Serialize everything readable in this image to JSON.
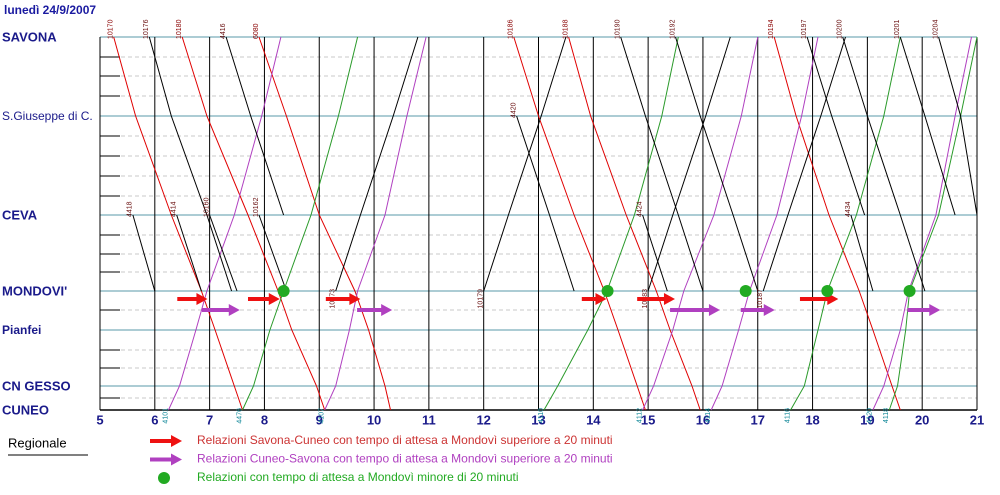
{
  "chart_data": {
    "type": "timetable",
    "title": "lunedì 24/9/2007",
    "stations": [
      "SAVONA",
      "S.Giuseppe di C.",
      "CEVA",
      "MONDOVI'",
      "Pianfei",
      "CN GESSO",
      "CUNEO"
    ],
    "xlim": [
      5,
      21
    ],
    "xticks": [
      5,
      6,
      7,
      8,
      9,
      10,
      11,
      12,
      13,
      14,
      15,
      16,
      17,
      18,
      19,
      20,
      21
    ],
    "grid": true,
    "legend_title": "Regionale",
    "trains": [
      {
        "name": "10170",
        "color": "#e00000",
        "stops": [
          "SAVONA",
          "S.Giuseppe di C.",
          "CEVA",
          "MONDOVI'",
          "Pianfei",
          "CN GESSO",
          "CUNEO"
        ],
        "times": [
          5.25,
          5.65,
          6.3,
          6.85,
          7.1,
          7.45,
          7.6
        ]
      },
      {
        "name": "10180",
        "color": "#e00000",
        "stops": [
          "SAVONA",
          "S.Giuseppe di C.",
          "CEVA",
          "MONDOVI'",
          "Pianfei",
          "CN GESSO",
          "CUNEO"
        ],
        "times": [
          6.5,
          6.95,
          7.7,
          8.25,
          8.5,
          8.95,
          9.1
        ]
      },
      {
        "name": "6080",
        "color": "#e00000",
        "stops": [
          "SAVONA",
          "S.Giuseppe di C.",
          "CEVA",
          "MONDOVI'",
          "Pianfei",
          "CN GESSO",
          "CUNEO"
        ],
        "times": [
          7.9,
          8.4,
          9.0,
          9.65,
          9.9,
          10.2,
          10.3
        ]
      },
      {
        "name": "10186",
        "color": "#e00000",
        "stops": [
          "SAVONA",
          "S.Giuseppe di C.",
          "CEVA",
          "MONDOVI'",
          "Pianfei",
          "CN GESSO",
          "CUNEO"
        ],
        "times": [
          12.55,
          13.0,
          13.65,
          14.2,
          14.45,
          14.8,
          14.95
        ]
      },
      {
        "name": "10188",
        "color": "#e00000",
        "stops": [
          "SAVONA",
          "S.Giuseppe di C.",
          "CEVA",
          "MONDOVI'",
          "Pianfei",
          "CN GESSO",
          "CUNEO"
        ],
        "times": [
          13.55,
          13.95,
          14.6,
          15.15,
          15.4,
          15.8,
          15.95
        ]
      },
      {
        "name": "10194",
        "color": "#e00000",
        "stops": [
          "SAVONA",
          "S.Giuseppe di C.",
          "CEVA",
          "MONDOVI'",
          "Pianfei",
          "CN GESSO",
          "CUNEO"
        ],
        "times": [
          17.3,
          17.7,
          18.3,
          18.85,
          19.1,
          19.45,
          19.6
        ]
      },
      {
        "name": "4101",
        "color": "#b040c0",
        "stops": [
          "CUNEO",
          "CN GESSO",
          "Pianfei",
          "MONDOVI'",
          "CEVA",
          "S.Giuseppe di C.",
          "SAVONA"
        ],
        "times": [
          6.25,
          6.45,
          6.75,
          6.95,
          7.45,
          7.95,
          8.3
        ]
      },
      {
        "name": "4107",
        "color": "#b040c0",
        "stops": [
          "CUNEO",
          "CN GESSO",
          "Pianfei",
          "MONDOVI'",
          "CEVA",
          "S.Giuseppe di C.",
          "SAVONA"
        ],
        "times": [
          9.1,
          9.3,
          9.55,
          9.7,
          10.2,
          10.6,
          10.95
        ]
      },
      {
        "name": "4112",
        "color": "#b040c0",
        "stops": [
          "CUNEO",
          "CN GESSO",
          "Pianfei",
          "MONDOVI'",
          "CEVA",
          "S.Giuseppe di C.",
          "SAVONA"
        ],
        "times": [
          14.9,
          15.1,
          15.45,
          15.65,
          16.2,
          16.7,
          17.0
        ]
      },
      {
        "name": "4114",
        "color": "#b040c0",
        "stops": [
          "CUNEO",
          "CN GESSO",
          "Pianfei",
          "MONDOVI'",
          "CEVA",
          "S.Giuseppe di C.",
          "SAVONA"
        ],
        "times": [
          16.15,
          16.35,
          16.65,
          16.85,
          17.35,
          17.8,
          18.1
        ]
      },
      {
        "name": "4120",
        "color": "#b040c0",
        "stops": [
          "CUNEO",
          "CN GESSO",
          "Pianfei",
          "MONDOVI'",
          "CEVA",
          "S.Giuseppe di C.",
          "SAVONA"
        ],
        "times": [
          19.1,
          19.3,
          19.6,
          19.75,
          20.25,
          20.6,
          20.9
        ]
      },
      {
        "name": "4476",
        "color": "#2a9a2a",
        "stops": [
          "CUNEO",
          "CN GESSO",
          "Pianfei",
          "MONDOVI'",
          "CEVA",
          "S.Giuseppe di C.",
          "SAVONA"
        ],
        "times": [
          7.6,
          7.8,
          8.1,
          8.35,
          8.85,
          9.35,
          9.7
        ]
      },
      {
        "name": "4110",
        "color": "#2a9a2a",
        "stops": [
          "CUNEO",
          "CN GESSO",
          "Pianfei",
          "MONDOVI'",
          "CEVA",
          "S.Giuseppe di C.",
          "SAVONA"
        ],
        "times": [
          13.1,
          13.35,
          13.9,
          14.25,
          14.75,
          15.25,
          15.55
        ]
      },
      {
        "name": "4116",
        "color": "#2a9a2a",
        "stops": [
          "CUNEO",
          "CN GESSO",
          "Pianfei",
          "MONDOVI'",
          "CEVA",
          "S.Giuseppe di C.",
          "SAVONA"
        ],
        "times": [
          17.6,
          17.85,
          18.1,
          18.27,
          18.8,
          19.3,
          19.6
        ]
      },
      {
        "name": "4118",
        "color": "#2a9a2a",
        "stops": [
          "CUNEO",
          "CN GESSO",
          "Pianfei",
          "MONDOVI'",
          "CEVA",
          "S.Giuseppe di C.",
          "SAVONA"
        ],
        "times": [
          19.4,
          19.55,
          19.7,
          19.77,
          20.3,
          20.7,
          21.0
        ]
      },
      {
        "name": "10176",
        "color": "#000000",
        "stops": [
          "SAVONA",
          "S.Giuseppe di C.",
          "CEVA",
          "MONDOVI'"
        ],
        "times": [
          5.9,
          6.3,
          6.95,
          7.4
        ]
      },
      {
        "name": "4416",
        "color": "#000000",
        "stops": [
          "SAVONA",
          "S.Giuseppe di C.",
          "CEVA"
        ],
        "times": [
          7.3,
          7.75,
          8.35
        ]
      },
      {
        "name": "10190",
        "color": "#000000",
        "stops": [
          "SAVONA",
          "S.Giuseppe di C.",
          "CEVA",
          "MONDOVI'"
        ],
        "times": [
          14.5,
          14.95,
          15.55,
          16.0
        ]
      },
      {
        "name": "10192",
        "color": "#000000",
        "stops": [
          "SAVONA",
          "S.Giuseppe di C.",
          "CEVA",
          "MONDOVI'"
        ],
        "times": [
          15.5,
          15.95,
          16.55,
          17.0
        ]
      },
      {
        "name": "10197",
        "color": "#000000",
        "stops": [
          "SAVONA",
          "S.Giuseppe di C.",
          "CEVA"
        ],
        "times": [
          17.9,
          18.35,
          18.95
        ]
      },
      {
        "name": "10200",
        "color": "#000000",
        "stops": [
          "SAVONA",
          "S.Giuseppe di C.",
          "CEVA",
          "MONDOVI'"
        ],
        "times": [
          18.55,
          19.0,
          19.6,
          20.05
        ]
      },
      {
        "name": "10201",
        "color": "#000000",
        "stops": [
          "SAVONA",
          "S.Giuseppe di C.",
          "CEVA"
        ],
        "times": [
          19.6,
          20.05,
          20.6
        ]
      },
      {
        "name": "10204",
        "color": "#000000",
        "stops": [
          "SAVONA",
          "S.Giuseppe di C.",
          "CEVA"
        ],
        "times": [
          20.3,
          20.7,
          21.0
        ]
      },
      {
        "name": "10173",
        "color": "#000000",
        "stops": [
          "MONDOVI'",
          "CEVA",
          "S.Giuseppe di C.",
          "SAVONA"
        ],
        "times": [
          9.3,
          9.75,
          10.35,
          10.8
        ]
      },
      {
        "name": "10179",
        "color": "#000000",
        "stops": [
          "MONDOVI'",
          "CEVA",
          "S.Giuseppe di C.",
          "SAVONA"
        ],
        "times": [
          12.0,
          12.45,
          13.05,
          13.5
        ]
      },
      {
        "name": "10183",
        "color": "#000000",
        "stops": [
          "MONDOVI'",
          "CEVA",
          "S.Giuseppe di C.",
          "SAVONA"
        ],
        "times": [
          15.0,
          15.45,
          16.05,
          16.5
        ]
      },
      {
        "name": "10187",
        "color": "#000000",
        "stops": [
          "MONDOVI'",
          "CEVA",
          "S.Giuseppe di C.",
          "SAVONA"
        ],
        "times": [
          17.1,
          17.55,
          18.15,
          18.6
        ]
      },
      {
        "name": "4418",
        "color": "#000000",
        "stops": [
          "CEVA",
          "MONDOVI'"
        ],
        "times": [
          5.6,
          6.0
        ]
      },
      {
        "name": "4414",
        "color": "#000000",
        "stops": [
          "CEVA",
          "MONDOVI'"
        ],
        "times": [
          6.4,
          6.85
        ]
      },
      {
        "name": "10160",
        "color": "#000000",
        "stops": [
          "CEVA",
          "MONDOVI'"
        ],
        "times": [
          7.0,
          7.5
        ]
      },
      {
        "name": "10162",
        "color": "#000000",
        "stops": [
          "CEVA",
          "MONDOVI'"
        ],
        "times": [
          7.9,
          8.4
        ]
      },
      {
        "name": "4420",
        "color": "#000000",
        "stops": [
          "S.Giuseppe di C.",
          "CEVA",
          "MONDOVI'"
        ],
        "times": [
          12.6,
          13.2,
          13.65
        ]
      },
      {
        "name": "4424",
        "color": "#000000",
        "stops": [
          "CEVA",
          "MONDOVI'"
        ],
        "times": [
          14.9,
          15.35
        ]
      },
      {
        "name": "4434",
        "color": "#000000",
        "stops": [
          "CEVA",
          "MONDOVI'"
        ],
        "times": [
          18.7,
          19.1
        ]
      }
    ],
    "markers": [
      {
        "name": "Relazioni Savona-Cuneo con tempo di attesa a Mondovì superiore a 20 minuti",
        "shape": "arrow",
        "color": "#ee1111",
        "x": [
          [
            6.41,
            6.96
          ],
          [
            7.7,
            8.28
          ],
          [
            9.12,
            9.75
          ],
          [
            13.79,
            14.24
          ],
          [
            14.8,
            15.49
          ],
          [
            17.77,
            18.47
          ]
        ]
      },
      {
        "name": "Relazioni Cuneo-Savona con tempo di attesa a Mondovì superiore a 20 minuti",
        "shape": "arrow",
        "color": "#b040c0",
        "x": [
          [
            6.86,
            7.55
          ],
          [
            9.69,
            10.33
          ],
          [
            15.4,
            16.31
          ],
          [
            16.69,
            17.31
          ],
          [
            19.73,
            20.33
          ]
        ]
      },
      {
        "name": "Relazioni con tempo di attesa a Mondovì minore di 20 minuti",
        "shape": "dot",
        "color": "#22aa22",
        "station": "MONDOVI'",
        "x": [
          8.35,
          14.26,
          16.78,
          18.27,
          19.77
        ]
      }
    ]
  }
}
